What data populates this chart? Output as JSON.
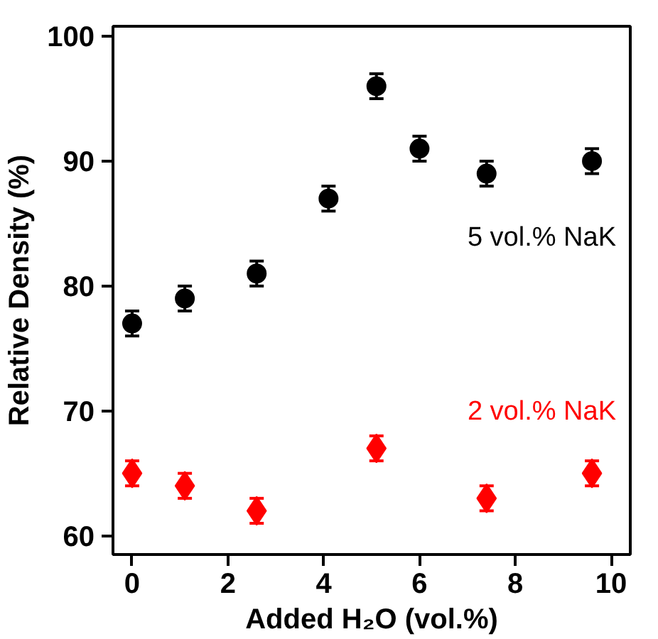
{
  "chart_data": {
    "type": "scatter",
    "xlabel": "Added H₂O (vol.%)",
    "ylabel": "Relative Density (%)",
    "xlim": [
      -0.4,
      10.4
    ],
    "ylim": [
      58.5,
      100.8
    ],
    "xticks": [
      0,
      2,
      4,
      6,
      8,
      10
    ],
    "yticks": [
      60,
      70,
      80,
      90,
      100
    ],
    "grid": false,
    "series": [
      {
        "name": "5 vol.% NaK",
        "color": "#000000",
        "marker": "circle",
        "x": [
          0,
          1.1,
          2.6,
          4.1,
          5.1,
          6.0,
          7.4,
          9.6
        ],
        "values": [
          77,
          79,
          81,
          87,
          96,
          91,
          89,
          90
        ],
        "errors": [
          1,
          1,
          1,
          1,
          1,
          1,
          1,
          1
        ]
      },
      {
        "name": "2 vol.% NaK",
        "color": "#ff0000",
        "marker": "diamond",
        "x": [
          0,
          1.1,
          2.6,
          5.1,
          7.4,
          9.6
        ],
        "values": [
          65,
          64,
          62,
          67,
          63,
          65
        ],
        "errors": [
          1,
          1,
          1,
          1,
          1,
          1
        ]
      }
    ]
  }
}
